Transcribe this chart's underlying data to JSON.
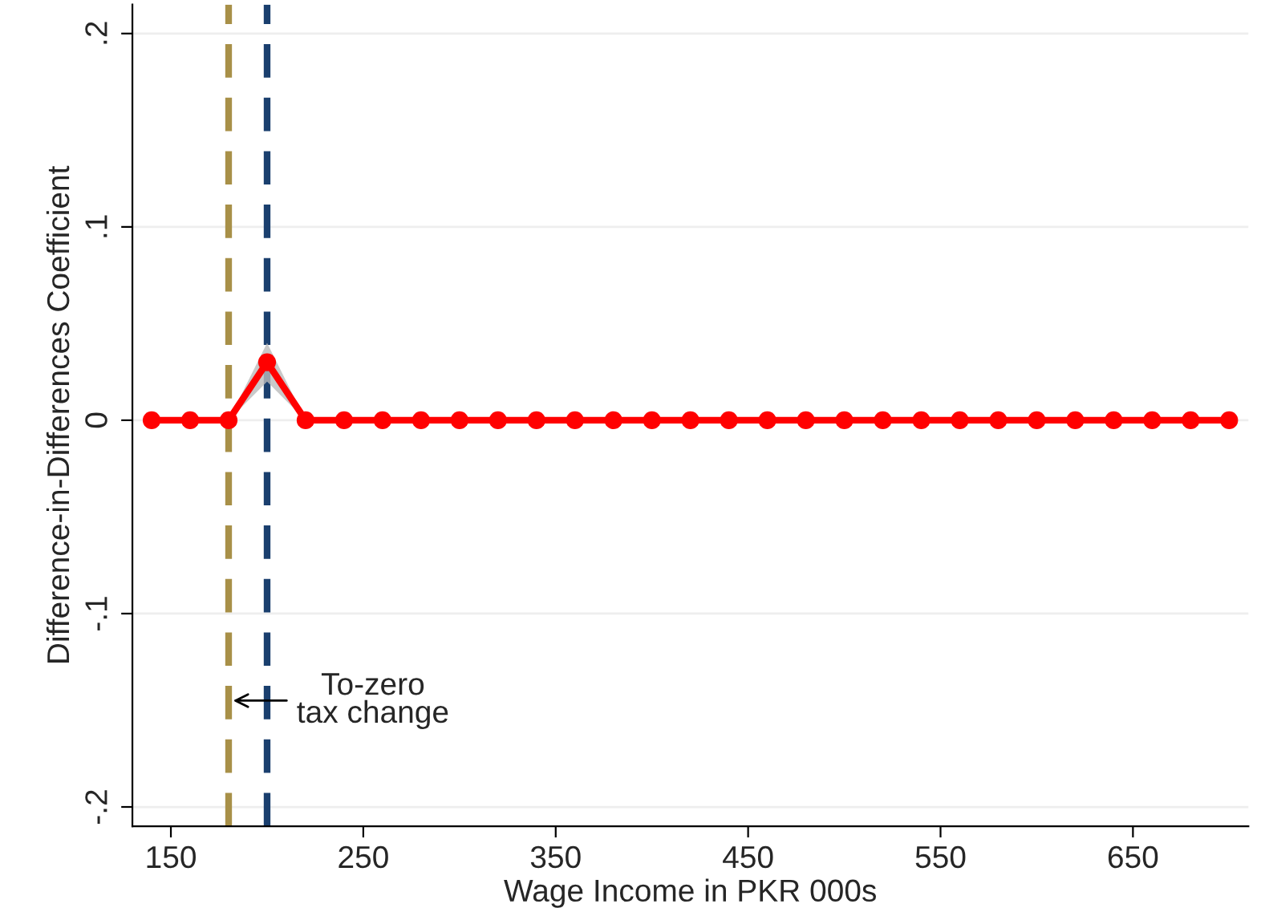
{
  "chart_data": {
    "type": "line",
    "xlabel": "Wage Income in PKR 000s",
    "ylabel": "Difference-in-Differences Coefficient",
    "x": [
      140,
      160,
      180,
      200,
      220,
      240,
      260,
      280,
      300,
      320,
      340,
      360,
      380,
      400,
      420,
      440,
      460,
      480,
      500,
      520,
      540,
      560,
      580,
      600,
      620,
      640,
      660,
      680,
      700
    ],
    "series": [
      {
        "color": "#ff0000",
        "values": [
          0,
          0,
          0,
          0.03,
          0,
          0,
          0,
          0,
          0,
          0,
          0,
          0,
          0,
          0,
          0,
          0,
          0,
          0,
          0,
          0,
          0,
          0,
          0,
          0,
          0,
          0,
          0,
          0,
          0
        ],
        "lower": [
          0,
          0,
          0,
          0.02,
          0,
          0,
          0,
          0,
          0,
          0,
          0,
          0,
          0,
          0,
          0,
          0,
          0,
          0,
          0,
          0,
          0,
          0,
          0,
          0,
          0,
          0,
          0,
          0,
          0
        ],
        "upper": [
          0,
          0,
          0,
          0.04,
          0,
          0,
          0,
          0,
          0,
          0,
          0,
          0,
          0,
          0,
          0,
          0,
          0,
          0,
          0,
          0,
          0,
          0,
          0,
          0,
          0,
          0,
          0,
          0,
          0
        ]
      }
    ],
    "marker": "circle",
    "line_style": "solid",
    "xlim": [
      130,
      710
    ],
    "xticks": [
      150,
      250,
      350,
      450,
      550,
      650
    ],
    "ylim": [
      -0.21,
      0.215
    ],
    "yticks": [
      {
        "value": -0.2,
        "label": "-.2"
      },
      {
        "value": -0.1,
        "label": "-.1"
      },
      {
        "value": 0,
        "label": "0"
      },
      {
        "value": 0.1,
        "label": ".1"
      },
      {
        "value": 0.2,
        "label": ".2"
      }
    ],
    "grid": "y",
    "ref_lines": [
      {
        "axis": "x",
        "value": 180,
        "color": "#a89048",
        "line_style": "dashed"
      },
      {
        "axis": "x",
        "value": 200,
        "color": "#1a3f6e",
        "line_style": "dashed"
      }
    ],
    "annotations": [
      {
        "text": "To-zero\ntax change",
        "x": 180,
        "y": -0.145
      }
    ]
  }
}
